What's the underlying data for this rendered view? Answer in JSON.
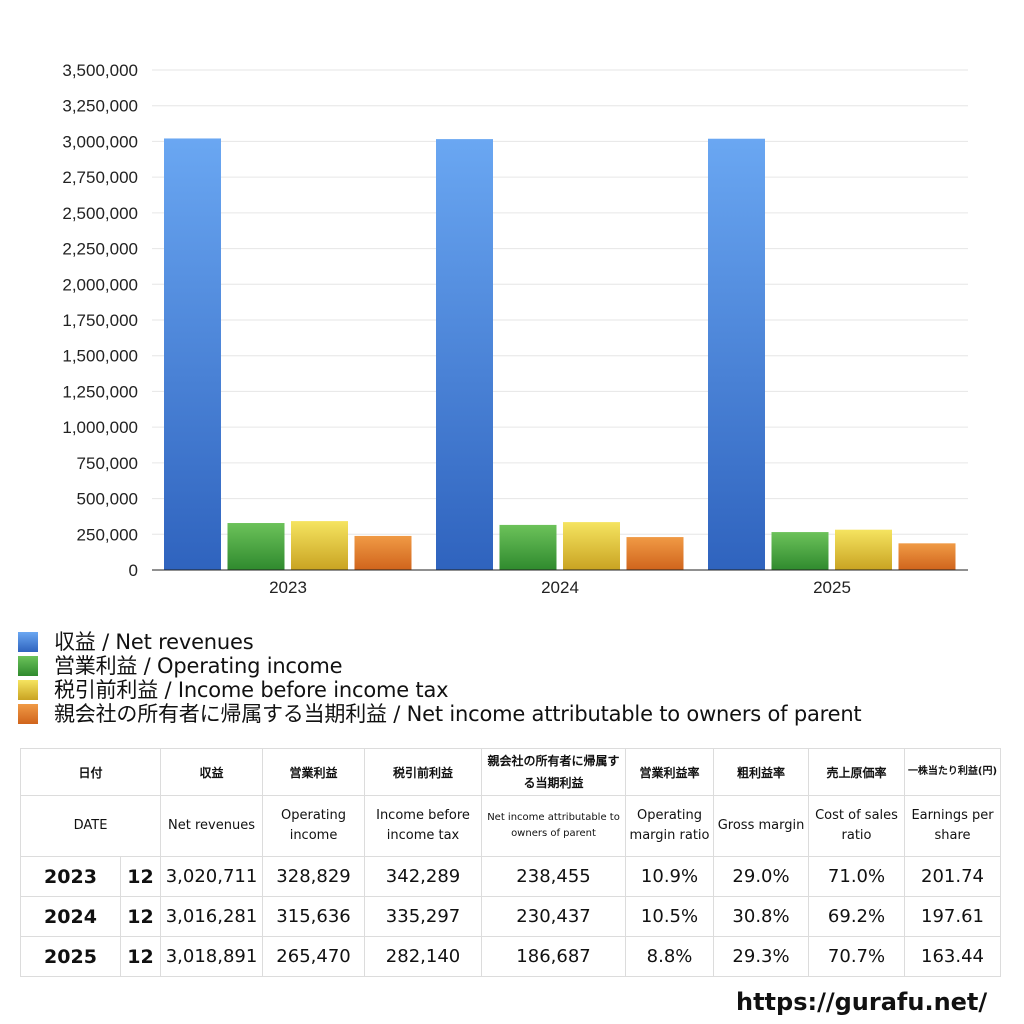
{
  "chart_data": {
    "type": "bar",
    "categories": [
      "2023",
      "2024",
      "2025"
    ],
    "series": [
      {
        "name": "収益 / Net revenues",
        "values": [
          3020711,
          3016281,
          3018891
        ],
        "color": "#3d7fe0"
      },
      {
        "name": "営業利益 / Operating income",
        "values": [
          328829,
          315636,
          265470
        ],
        "color": "#4aa13f"
      },
      {
        "name": "税引前利益 / Income before income tax",
        "values": [
          342289,
          335297,
          282140
        ],
        "color": "#e5c83a"
      },
      {
        "name": "親会社の所有者に帰属する当期利益 / Net income attributable to owners of parent",
        "values": [
          238455,
          230437,
          186687
        ],
        "color": "#e07a2a"
      }
    ],
    "yticks": [
      "0",
      "250,000",
      "500,000",
      "750,000",
      "1,000,000",
      "1,250,000",
      "1,500,000",
      "1,750,000",
      "2,000,000",
      "2,250,000",
      "2,500,000",
      "2,750,000",
      "3,000,000",
      "3,250,000",
      "3,500,000"
    ],
    "ylim": [
      0,
      3500000
    ],
    "grid": true,
    "legend_position": "bottom"
  },
  "table": {
    "headers_ja": [
      "日付",
      "収益",
      "営業利益",
      "税引前利益",
      "親会社の所有者に帰属する当期利益",
      "営業利益率",
      "粗利益率",
      "売上原価率",
      "一株当たり利益(円)"
    ],
    "headers_en": [
      "DATE",
      "Net revenues",
      "Operating income",
      "Income before income tax",
      "Net income attributable to owners of parent",
      "Operating margin ratio",
      "Gross margin",
      "Cost of sales ratio",
      "Earnings per share"
    ],
    "rows": [
      {
        "year": "2023",
        "month": "12",
        "values": [
          "3,020,711",
          "328,829",
          "342,289",
          "238,455",
          "10.9%",
          "29.0%",
          "71.0%",
          "201.74"
        ]
      },
      {
        "year": "2024",
        "month": "12",
        "values": [
          "3,016,281",
          "315,636",
          "335,297",
          "230,437",
          "10.5%",
          "30.8%",
          "69.2%",
          "197.61"
        ]
      },
      {
        "year": "2025",
        "month": "12",
        "values": [
          "3,018,891",
          "265,470",
          "282,140",
          "186,687",
          "8.8%",
          "29.3%",
          "70.7%",
          "163.44"
        ]
      }
    ]
  },
  "footer": {
    "url": "https://gurafu.net/"
  }
}
